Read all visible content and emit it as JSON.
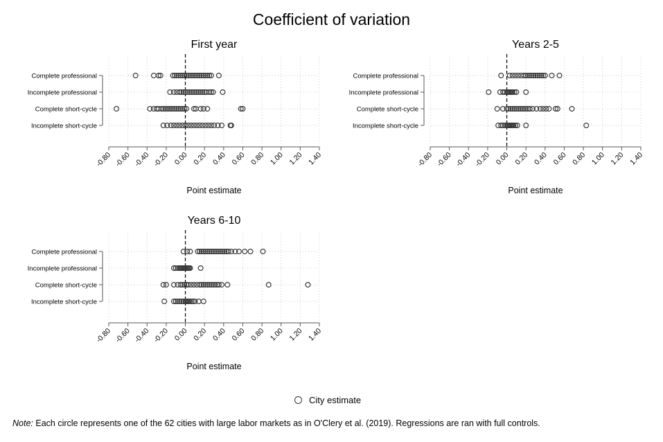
{
  "title": "Coefficient of variation",
  "legend": {
    "label": "City estimate"
  },
  "note": {
    "label": "Note:",
    "text": "Each circle represents one of the 62 cities with large labor markets as in O'Clery et al. (2019). Regressions are ran with full controls."
  },
  "colors": {
    "marker": "#3a3a3a",
    "grid": "#c8c8c8",
    "axis": "#555555"
  },
  "chart_data": [
    {
      "type": "scatter",
      "title": "First year",
      "xlabel": "Point estimate",
      "xlim": [
        -0.8,
        1.4
      ],
      "xticks": [
        "-0.80",
        "-0.60",
        "-0.40",
        "-0.20",
        "0.00",
        "0.20",
        "0.40",
        "0.60",
        "0.80",
        "1.00",
        "1.20",
        "1.40"
      ],
      "reference_line_x": 0,
      "categories": [
        "Complete professional",
        "Incomplete professional",
        "Complete short-cycle",
        "Incomplete short-cycle"
      ],
      "series": [
        {
          "category": "Complete professional",
          "x": [
            -0.52,
            -0.33,
            -0.28,
            -0.26,
            -0.13,
            -0.11,
            -0.09,
            -0.07,
            -0.05,
            -0.03,
            -0.01,
            0.01,
            0.03,
            0.05,
            0.07,
            0.09,
            0.11,
            0.13,
            0.15,
            0.17,
            0.19,
            0.21,
            0.23,
            0.25,
            0.27,
            0.35
          ]
        },
        {
          "category": "Incomplete professional",
          "x": [
            -0.16,
            -0.12,
            -0.09,
            -0.06,
            -0.04,
            -0.02,
            0.0,
            0.02,
            0.04,
            0.06,
            0.08,
            0.1,
            0.12,
            0.14,
            0.16,
            0.18,
            0.2,
            0.22,
            0.25,
            0.27,
            0.29,
            0.39
          ]
        },
        {
          "category": "Complete short-cycle",
          "x": [
            -0.72,
            -0.37,
            -0.33,
            -0.3,
            -0.28,
            -0.25,
            -0.23,
            -0.21,
            -0.19,
            -0.17,
            -0.15,
            -0.13,
            -0.11,
            -0.09,
            -0.07,
            -0.05,
            -0.03,
            -0.01,
            0.01,
            0.09,
            0.11,
            0.16,
            0.19,
            0.23,
            0.58,
            0.6
          ]
        },
        {
          "category": "Incomplete short-cycle",
          "x": [
            -0.23,
            -0.19,
            -0.15,
            -0.12,
            -0.09,
            -0.06,
            -0.03,
            0.0,
            0.03,
            0.06,
            0.09,
            0.12,
            0.15,
            0.18,
            0.21,
            0.24,
            0.27,
            0.3,
            0.34,
            0.38,
            0.47,
            0.48
          ]
        }
      ]
    },
    {
      "type": "scatter",
      "title": "Years 2-5",
      "xlabel": "Point estimate",
      "xlim": [
        -0.8,
        1.4
      ],
      "xticks": [
        "-0.80",
        "-0.60",
        "-0.40",
        "-0.20",
        "0.00",
        "0.20",
        "0.40",
        "0.60",
        "0.80",
        "1.00",
        "1.20",
        "1.40"
      ],
      "reference_line_x": 0,
      "categories": [
        "Complete professional",
        "Incomplete professional",
        "Complete short-cycle",
        "Incomplete short-cycle"
      ],
      "series": [
        {
          "category": "Complete professional",
          "x": [
            -0.06,
            0.03,
            0.06,
            0.09,
            0.12,
            0.15,
            0.18,
            0.2,
            0.22,
            0.24,
            0.26,
            0.28,
            0.3,
            0.32,
            0.34,
            0.36,
            0.38,
            0.4,
            0.47,
            0.55
          ]
        },
        {
          "category": "Incomplete professional",
          "x": [
            -0.19,
            -0.07,
            -0.04,
            -0.02,
            0.0,
            0.01,
            0.02,
            0.03,
            0.04,
            0.05,
            0.06,
            0.08,
            0.1,
            0.2
          ]
        },
        {
          "category": "Complete short-cycle",
          "x": [
            -0.1,
            -0.04,
            0.0,
            0.02,
            0.04,
            0.06,
            0.08,
            0.1,
            0.12,
            0.14,
            0.16,
            0.18,
            0.2,
            0.22,
            0.24,
            0.27,
            0.31,
            0.35,
            0.38,
            0.41,
            0.44,
            0.51,
            0.53,
            0.68
          ]
        },
        {
          "category": "Incomplete short-cycle",
          "x": [
            -0.09,
            -0.06,
            -0.04,
            -0.02,
            0.0,
            0.01,
            0.02,
            0.03,
            0.04,
            0.05,
            0.06,
            0.07,
            0.09,
            0.11,
            0.2,
            0.83
          ]
        }
      ]
    },
    {
      "type": "scatter",
      "title": "Years 6-10",
      "xlabel": "Point estimate",
      "xlim": [
        -0.8,
        1.4
      ],
      "xticks": [
        "-0.80",
        "-0.60",
        "-0.40",
        "-0.20",
        "0.00",
        "0.20",
        "0.40",
        "0.60",
        "0.80",
        "1.00",
        "1.20",
        "1.40"
      ],
      "reference_line_x": 0,
      "categories": [
        "Complete professional",
        "Incomplete professional",
        "Complete short-cycle",
        "Incomplete short-cycle"
      ],
      "series": [
        {
          "category": "Complete professional",
          "x": [
            -0.02,
            0.02,
            0.05,
            0.13,
            0.15,
            0.17,
            0.19,
            0.21,
            0.23,
            0.25,
            0.27,
            0.29,
            0.31,
            0.33,
            0.35,
            0.37,
            0.39,
            0.41,
            0.43,
            0.45,
            0.48,
            0.52,
            0.56,
            0.62,
            0.68,
            0.81
          ]
        },
        {
          "category": "Incomplete professional",
          "x": [
            -0.12,
            -0.1,
            -0.08,
            -0.06,
            -0.05,
            -0.04,
            -0.03,
            -0.02,
            -0.01,
            0.0,
            0.01,
            0.02,
            0.03,
            0.04,
            0.05,
            0.16
          ]
        },
        {
          "category": "Complete short-cycle",
          "x": [
            -0.23,
            -0.2,
            -0.12,
            -0.08,
            -0.05,
            -0.03,
            -0.01,
            0.01,
            0.03,
            0.06,
            0.09,
            0.12,
            0.15,
            0.17,
            0.19,
            0.21,
            0.23,
            0.25,
            0.27,
            0.29,
            0.31,
            0.33,
            0.35,
            0.38,
            0.44,
            0.87,
            1.28
          ]
        },
        {
          "category": "Incomplete short-cycle",
          "x": [
            -0.22,
            -0.12,
            -0.1,
            -0.08,
            -0.06,
            -0.04,
            -0.02,
            0.0,
            0.01,
            0.02,
            0.03,
            0.04,
            0.06,
            0.08,
            0.1,
            0.14,
            0.19
          ]
        }
      ]
    }
  ]
}
